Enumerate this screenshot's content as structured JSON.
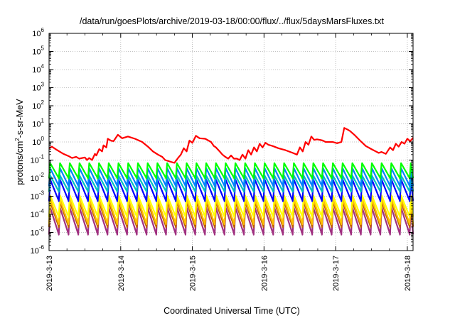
{
  "chart_data": {
    "type": "line",
    "title": "/data/run/goesPlots/archive/2019-03-18/00:00/flux/../flux/5daysMarsFluxes.txt",
    "xlabel": "Coordinated Universal Time (UTC)",
    "ylabel_parts": {
      "pre": "protons/cm",
      "sup": "2",
      "post": "-s-sr-MeV"
    },
    "xlim": [
      0,
      5.08
    ],
    "ylim_exp": [
      -6,
      6
    ],
    "yscale": "log",
    "grid": true,
    "x_ticks": [
      {
        "value": 0,
        "label": "2019-3-13"
      },
      {
        "value": 1,
        "label": "2019-3-14"
      },
      {
        "value": 2,
        "label": "2019-3-15"
      },
      {
        "value": 3,
        "label": "2019-3-16"
      },
      {
        "value": 4,
        "label": "2019-3-17"
      },
      {
        "value": 5,
        "label": "2019-3-18"
      }
    ],
    "y_ticks": [
      {
        "base": "10",
        "exp": "-6"
      },
      {
        "base": "10",
        "exp": "-5"
      },
      {
        "base": "10",
        "exp": "-4"
      },
      {
        "base": "10",
        "exp": "-3"
      },
      {
        "base": "10",
        "exp": "-2"
      },
      {
        "base": "10",
        "exp": "-1"
      },
      {
        "base": "10",
        "exp": "0"
      },
      {
        "base": "10",
        "exp": "1"
      },
      {
        "base": "10",
        "exp": "2"
      },
      {
        "base": "10",
        "exp": "3"
      },
      {
        "base": "10",
        "exp": "4"
      },
      {
        "base": "10",
        "exp": "5"
      },
      {
        "base": "10",
        "exp": "6"
      }
    ],
    "series": [
      {
        "color": "#ff0000",
        "x": [
          0,
          0.04,
          0.1,
          0.2,
          0.28,
          0.32,
          0.38,
          0.42,
          0.5,
          0.53,
          0.56,
          0.6,
          0.64,
          0.66,
          0.7,
          0.74,
          0.76,
          0.8,
          0.82,
          0.86,
          0.9,
          0.96,
          1.02,
          1.1,
          1.2,
          1.3,
          1.38,
          1.45,
          1.52,
          1.58,
          1.62,
          1.7,
          1.75,
          1.8,
          1.84,
          1.88,
          1.92,
          1.96,
          2.0,
          2.05,
          2.1,
          2.18,
          2.26,
          2.3,
          2.33,
          2.38,
          2.42,
          2.46,
          2.5,
          2.54,
          2.58,
          2.62,
          2.66,
          2.7,
          2.74,
          2.78,
          2.82,
          2.86,
          2.9,
          2.94,
          2.98,
          3.02,
          3.06,
          3.12,
          3.2,
          3.3,
          3.4,
          3.46,
          3.5,
          3.54,
          3.58,
          3.62,
          3.66,
          3.7,
          3.74,
          3.78,
          3.82,
          3.86,
          3.9,
          3.96,
          4.02,
          4.08,
          4.12,
          4.16,
          4.2,
          4.26,
          4.34,
          4.42,
          4.5,
          4.56,
          4.6,
          4.64,
          4.7,
          4.76,
          4.8,
          4.84,
          4.88,
          4.92,
          4.96,
          5.0,
          5.04,
          5.08
        ],
        "y": [
          0.45,
          0.55,
          0.38,
          0.22,
          0.16,
          0.13,
          0.15,
          0.12,
          0.14,
          0.1,
          0.13,
          0.1,
          0.22,
          0.18,
          0.4,
          0.3,
          0.65,
          0.5,
          1.5,
          1.2,
          1.1,
          2.5,
          1.6,
          2.0,
          1.5,
          1.0,
          0.55,
          0.3,
          0.2,
          0.15,
          0.1,
          0.08,
          0.07,
          0.13,
          0.2,
          0.45,
          0.3,
          1.2,
          0.9,
          2.2,
          1.6,
          1.5,
          1.0,
          0.6,
          0.5,
          0.3,
          0.2,
          0.15,
          0.12,
          0.18,
          0.12,
          0.12,
          0.1,
          0.2,
          0.12,
          0.35,
          0.2,
          0.5,
          0.3,
          0.8,
          0.5,
          0.9,
          0.7,
          0.6,
          0.45,
          0.35,
          0.25,
          0.2,
          0.5,
          0.3,
          1.0,
          0.7,
          2.0,
          1.3,
          1.4,
          1.3,
          1.2,
          1.0,
          1.0,
          1.0,
          0.85,
          1.0,
          6.0,
          5.0,
          4.0,
          2.5,
          1.2,
          0.6,
          0.4,
          0.3,
          0.25,
          0.28,
          0.22,
          0.5,
          0.35,
          0.8,
          0.55,
          1.0,
          0.8,
          1.5,
          1.1,
          1.7
        ]
      },
      {
        "color": "#00ff00",
        "base": 0.018,
        "amp": 0.3,
        "depth": 0.55
      },
      {
        "color": "#0080ff",
        "base": 0.008,
        "amp": 0.3,
        "depth": 0.7
      },
      {
        "color": "#00c0c0",
        "base": 0.0035,
        "amp": 0.3,
        "depth": 0.6
      },
      {
        "color": "#0000ff",
        "base": 0.0015,
        "amp": 0.3,
        "depth": 0.9
      },
      {
        "color": "#ffff00",
        "base": 0.0002,
        "amp": 0.3,
        "depth": 0.9
      },
      {
        "color": "#ffc000",
        "base": 0.0001,
        "amp": 0.3,
        "depth": 1.1
      },
      {
        "color": "#c06000",
        "base": 7e-05,
        "amp": 0.3,
        "depth": 1.1
      },
      {
        "color": "#a03080",
        "base": 3e-05,
        "amp": 0.3,
        "depth": 1.2
      }
    ],
    "period_days": 0.136
  }
}
